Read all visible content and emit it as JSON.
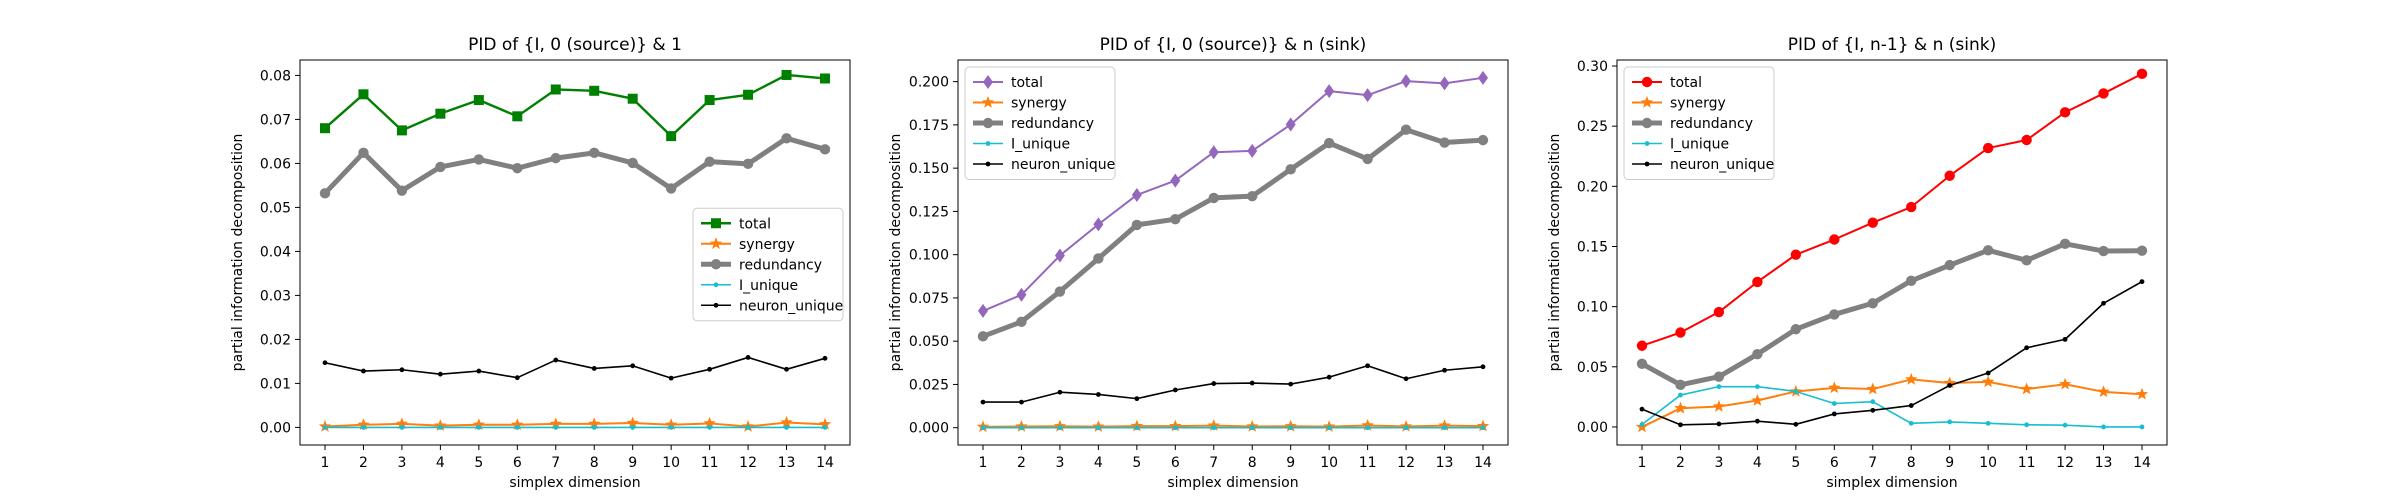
{
  "chart_data": [
    {
      "type": "line",
      "title": "PID of {I, 0 (source)} & 1",
      "xlabel": "simplex dimension",
      "ylabel": "partial information decomposition",
      "x": [
        1,
        2,
        3,
        4,
        5,
        6,
        7,
        8,
        9,
        10,
        11,
        12,
        13,
        14
      ],
      "ylim": [
        -0.004,
        0.0835
      ],
      "yticks": [
        0.0,
        0.01,
        0.02,
        0.03,
        0.04,
        0.05,
        0.06,
        0.07,
        0.08
      ],
      "ytick_labels": [
        "0.00",
        "0.01",
        "0.02",
        "0.03",
        "0.04",
        "0.05",
        "0.06",
        "0.07",
        "0.08"
      ],
      "legend_position": "center-right",
      "series": [
        {
          "name": "total",
          "color": "#008000",
          "marker": "square",
          "width": 2.4,
          "values": [
            0.068,
            0.0757,
            0.0675,
            0.0713,
            0.0744,
            0.0707,
            0.0768,
            0.0765,
            0.0747,
            0.0662,
            0.0744,
            0.0756,
            0.0801,
            0.0793
          ]
        },
        {
          "name": "synergy",
          "color": "#ff7f0e",
          "marker": "star",
          "width": 2.0,
          "values": [
            0.0002,
            0.0006,
            0.0008,
            0.0004,
            0.0006,
            0.0006,
            0.0008,
            0.0008,
            0.001,
            0.0006,
            0.0009,
            0.0002,
            0.0011,
            0.0007
          ]
        },
        {
          "name": "redundancy",
          "color": "#808080",
          "marker": "circle",
          "width": 5.0,
          "values": [
            0.0532,
            0.0624,
            0.0538,
            0.0592,
            0.0609,
            0.0589,
            0.0612,
            0.0624,
            0.0601,
            0.0543,
            0.0604,
            0.0599,
            0.0657,
            0.0632
          ]
        },
        {
          "name": "I_unique",
          "color": "#17becf",
          "marker": "small-dot",
          "width": 1.6,
          "values": [
            0.0,
            0.0,
            0.0,
            0.0,
            0.0,
            0.0,
            0.0,
            0.0,
            0.0,
            0.0,
            0.0,
            0.0,
            0.0,
            0.0
          ]
        },
        {
          "name": "neuron_unique",
          "color": "#000000",
          "marker": "small-dot",
          "width": 1.6,
          "values": [
            0.0147,
            0.0128,
            0.0131,
            0.0121,
            0.0128,
            0.0113,
            0.0153,
            0.0134,
            0.014,
            0.0112,
            0.0132,
            0.0159,
            0.0132,
            0.0157
          ]
        }
      ]
    },
    {
      "type": "line",
      "title": "PID of {I, 0 (source)} & n (sink)",
      "xlabel": "simplex dimension",
      "ylabel": "partial information decomposition",
      "x": [
        1,
        2,
        3,
        4,
        5,
        6,
        7,
        8,
        9,
        10,
        11,
        12,
        13,
        14
      ],
      "ylim": [
        -0.01,
        0.2125
      ],
      "yticks": [
        0.0,
        0.025,
        0.05,
        0.075,
        0.1,
        0.125,
        0.15,
        0.175,
        0.2
      ],
      "ytick_labels": [
        "0.000",
        "0.025",
        "0.050",
        "0.075",
        "0.100",
        "0.125",
        "0.150",
        "0.175",
        "0.200"
      ],
      "legend_position": "top-left",
      "series": [
        {
          "name": "total",
          "color": "#9467bd",
          "marker": "diamond",
          "width": 2.0,
          "values": [
            0.0675,
            0.0768,
            0.0995,
            0.1175,
            0.1345,
            0.1428,
            0.1592,
            0.16,
            0.1752,
            0.1945,
            0.1922,
            0.2003,
            0.199,
            0.2022
          ]
        },
        {
          "name": "synergy",
          "color": "#ff7f0e",
          "marker": "star",
          "width": 2.0,
          "values": [
            0.0005,
            0.0007,
            0.0008,
            0.0006,
            0.0009,
            0.0009,
            0.0012,
            0.0007,
            0.0008,
            0.0006,
            0.0013,
            0.0007,
            0.0012,
            0.0009
          ]
        },
        {
          "name": "redundancy",
          "color": "#808080",
          "marker": "circle",
          "width": 5.0,
          "values": [
            0.0528,
            0.0612,
            0.0787,
            0.0978,
            0.1172,
            0.1205,
            0.1328,
            0.1338,
            0.1493,
            0.1645,
            0.1553,
            0.1722,
            0.1648,
            0.1662
          ]
        },
        {
          "name": "I_unique",
          "color": "#17becf",
          "marker": "small-dot",
          "width": 1.6,
          "values": [
            0.0,
            0.0,
            0.0,
            0.0,
            0.0,
            0.0,
            0.0,
            0.0,
            0.0,
            0.0,
            0.0,
            0.0,
            0.0,
            0.0
          ]
        },
        {
          "name": "neuron_unique",
          "color": "#000000",
          "marker": "small-dot",
          "width": 1.6,
          "values": [
            0.0148,
            0.0148,
            0.0205,
            0.0192,
            0.0168,
            0.0218,
            0.0255,
            0.0258,
            0.0252,
            0.0292,
            0.0358,
            0.0283,
            0.0332,
            0.0352
          ]
        }
      ]
    },
    {
      "type": "line",
      "title": "PID of {I, n-1} & n (sink)",
      "xlabel": "simplex dimension",
      "ylabel": "partial information decomposition",
      "x": [
        1,
        2,
        3,
        4,
        5,
        6,
        7,
        8,
        9,
        10,
        11,
        12,
        13,
        14
      ],
      "ylim": [
        -0.015,
        0.305
      ],
      "yticks": [
        0.0,
        0.05,
        0.1,
        0.15,
        0.2,
        0.25,
        0.3
      ],
      "ytick_labels": [
        "0.00",
        "0.05",
        "0.10",
        "0.15",
        "0.20",
        "0.25",
        "0.30"
      ],
      "legend_position": "top-left",
      "series": [
        {
          "name": "total",
          "color": "#ff0000",
          "marker": "circle",
          "width": 2.0,
          "values": [
            0.0675,
            0.0785,
            0.0955,
            0.1205,
            0.1432,
            0.1558,
            0.1698,
            0.1828,
            0.2088,
            0.2318,
            0.2385,
            0.2615,
            0.2772,
            0.2935
          ]
        },
        {
          "name": "synergy",
          "color": "#ff7f0e",
          "marker": "star",
          "width": 2.0,
          "values": [
            0.0,
            0.0155,
            0.017,
            0.022,
            0.0295,
            0.0325,
            0.0315,
            0.0395,
            0.0365,
            0.0375,
            0.0315,
            0.0355,
            0.0292,
            0.0272
          ]
        },
        {
          "name": "redundancy",
          "color": "#808080",
          "marker": "circle",
          "width": 5.0,
          "values": [
            0.0525,
            0.035,
            0.0418,
            0.0605,
            0.0812,
            0.0935,
            0.1028,
            0.1215,
            0.1345,
            0.1468,
            0.1385,
            0.1522,
            0.1462,
            0.1465
          ]
        },
        {
          "name": "I_unique",
          "color": "#17becf",
          "marker": "small-dot",
          "width": 1.6,
          "values": [
            0.002,
            0.0265,
            0.0335,
            0.0335,
            0.0295,
            0.0195,
            0.021,
            0.003,
            0.0042,
            0.003,
            0.0018,
            0.0015,
            0.0,
            0.0
          ]
        },
        {
          "name": "neuron_unique",
          "color": "#000000",
          "marker": "small-dot",
          "width": 1.6,
          "values": [
            0.0148,
            0.0018,
            0.0025,
            0.0048,
            0.0022,
            0.0108,
            0.0138,
            0.0178,
            0.0345,
            0.0448,
            0.0658,
            0.0728,
            0.1028,
            0.1208
          ]
        }
      ]
    }
  ]
}
